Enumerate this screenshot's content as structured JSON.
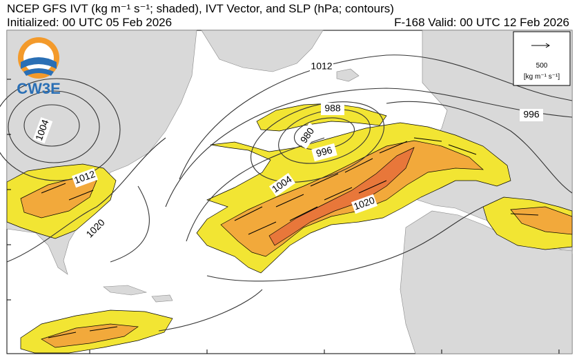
{
  "header": {
    "title": "NCEP GFS IVT (kg m⁻¹ s⁻¹; shaded), IVT Vector, and SLP (hPa; contours)",
    "initialized": "Initialized: 00 UTC 05 Feb 2026",
    "valid": "F-168  Valid: 00 UTC 12 Feb 2026"
  },
  "logo": {
    "text": "CW3E"
  },
  "legend": {
    "value": "500",
    "units": "[kg m⁻¹ s⁻¹]"
  },
  "contour_labels": [
    "1012",
    "988",
    "980",
    "996",
    "1004",
    "996",
    "1020",
    "1004",
    "1012",
    "1020"
  ]
}
